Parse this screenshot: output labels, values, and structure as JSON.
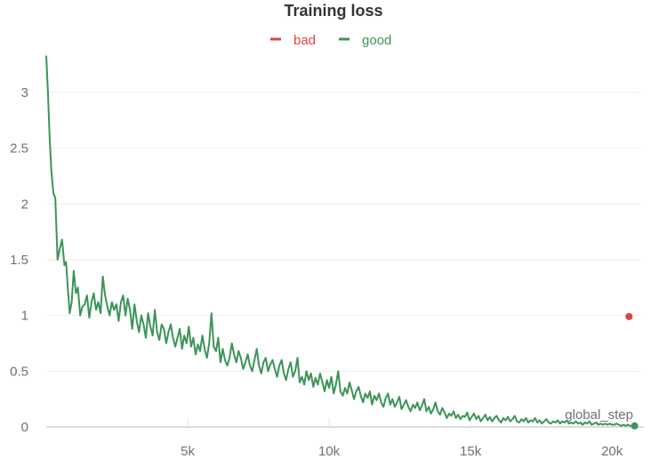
{
  "chart_data": {
    "type": "line",
    "title": "Training loss",
    "xlabel": "global_step",
    "ylabel": "",
    "xlim": [
      0,
      21000
    ],
    "ylim": [
      0,
      3.35
    ],
    "x_ticks": [
      {
        "value": 5000,
        "label": "5k"
      },
      {
        "value": 10000,
        "label": "10k"
      },
      {
        "value": 15000,
        "label": "15k"
      },
      {
        "value": 20000,
        "label": "20k"
      }
    ],
    "y_ticks": [
      {
        "value": 0,
        "label": "0"
      },
      {
        "value": 0.5,
        "label": "0.5"
      },
      {
        "value": 1,
        "label": "1"
      },
      {
        "value": 1.5,
        "label": "1.5"
      },
      {
        "value": 2,
        "label": "2"
      },
      {
        "value": 2.5,
        "label": "2.5"
      },
      {
        "value": 3,
        "label": "3"
      }
    ],
    "legend_position": "top-center",
    "grid": true,
    "series": [
      {
        "name": "bad",
        "color": "#dd4444",
        "points": [
          [
            20600,
            0.99
          ]
        ]
      },
      {
        "name": "good",
        "color": "#3d9458",
        "points": [
          [
            0,
            3.33
          ],
          [
            60,
            3.0
          ],
          [
            120,
            2.6
          ],
          [
            180,
            2.3
          ],
          [
            250,
            2.1
          ],
          [
            320,
            2.05
          ],
          [
            400,
            1.5
          ],
          [
            480,
            1.6
          ],
          [
            560,
            1.68
          ],
          [
            640,
            1.45
          ],
          [
            700,
            1.48
          ],
          [
            760,
            1.25
          ],
          [
            830,
            1.02
          ],
          [
            900,
            1.12
          ],
          [
            970,
            1.4
          ],
          [
            1050,
            1.2
          ],
          [
            1120,
            1.25
          ],
          [
            1200,
            1.0
          ],
          [
            1280,
            1.08
          ],
          [
            1360,
            1.1
          ],
          [
            1440,
            1.18
          ],
          [
            1520,
            0.98
          ],
          [
            1600,
            1.12
          ],
          [
            1680,
            1.2
          ],
          [
            1760,
            1.05
          ],
          [
            1840,
            1.12
          ],
          [
            1920,
            1.02
          ],
          [
            2000,
            1.35
          ],
          [
            2080,
            1.18
          ],
          [
            2160,
            1.08
          ],
          [
            2240,
            1.0
          ],
          [
            2320,
            1.12
          ],
          [
            2400,
            1.05
          ],
          [
            2480,
            1.1
          ],
          [
            2560,
            0.95
          ],
          [
            2640,
            1.12
          ],
          [
            2720,
            1.18
          ],
          [
            2800,
            1.0
          ],
          [
            2880,
            1.15
          ],
          [
            2960,
            1.05
          ],
          [
            3040,
            0.88
          ],
          [
            3120,
            1.1
          ],
          [
            3200,
            0.95
          ],
          [
            3280,
            0.85
          ],
          [
            3360,
            1.0
          ],
          [
            3440,
            0.92
          ],
          [
            3520,
            0.8
          ],
          [
            3600,
            1.02
          ],
          [
            3680,
            0.9
          ],
          [
            3760,
            0.82
          ],
          [
            3840,
            1.05
          ],
          [
            3920,
            0.85
          ],
          [
            4000,
            0.78
          ],
          [
            4080,
            0.92
          ],
          [
            4160,
            0.88
          ],
          [
            4240,
            0.75
          ],
          [
            4320,
            0.85
          ],
          [
            4400,
            0.92
          ],
          [
            4480,
            0.8
          ],
          [
            4560,
            0.72
          ],
          [
            4640,
            0.8
          ],
          [
            4720,
            0.88
          ],
          [
            4800,
            0.7
          ],
          [
            4880,
            0.82
          ],
          [
            4960,
            0.75
          ],
          [
            5040,
            0.9
          ],
          [
            5120,
            0.72
          ],
          [
            5200,
            0.8
          ],
          [
            5280,
            0.65
          ],
          [
            5360,
            0.74
          ],
          [
            5440,
            0.68
          ],
          [
            5520,
            0.82
          ],
          [
            5600,
            0.7
          ],
          [
            5680,
            0.62
          ],
          [
            5760,
            0.75
          ],
          [
            5840,
            1.02
          ],
          [
            5920,
            0.72
          ],
          [
            6000,
            0.68
          ],
          [
            6080,
            0.8
          ],
          [
            6160,
            0.58
          ],
          [
            6240,
            0.7
          ],
          [
            6320,
            0.6
          ],
          [
            6400,
            0.55
          ],
          [
            6480,
            0.62
          ],
          [
            6560,
            0.75
          ],
          [
            6640,
            0.65
          ],
          [
            6720,
            0.58
          ],
          [
            6800,
            0.68
          ],
          [
            6880,
            0.62
          ],
          [
            6960,
            0.52
          ],
          [
            7040,
            0.58
          ],
          [
            7120,
            0.65
          ],
          [
            7200,
            0.55
          ],
          [
            7280,
            0.5
          ],
          [
            7360,
            0.6
          ],
          [
            7440,
            0.7
          ],
          [
            7520,
            0.55
          ],
          [
            7600,
            0.48
          ],
          [
            7680,
            0.58
          ],
          [
            7760,
            0.62
          ],
          [
            7840,
            0.5
          ],
          [
            7920,
            0.56
          ],
          [
            8000,
            0.6
          ],
          [
            8080,
            0.52
          ],
          [
            8160,
            0.45
          ],
          [
            8240,
            0.55
          ],
          [
            8320,
            0.6
          ],
          [
            8400,
            0.48
          ],
          [
            8480,
            0.42
          ],
          [
            8560,
            0.52
          ],
          [
            8640,
            0.58
          ],
          [
            8720,
            0.45
          ],
          [
            8800,
            0.5
          ],
          [
            8880,
            0.62
          ],
          [
            8960,
            0.4
          ],
          [
            9040,
            0.45
          ],
          [
            9120,
            0.38
          ],
          [
            9200,
            0.5
          ],
          [
            9280,
            0.42
          ],
          [
            9360,
            0.48
          ],
          [
            9440,
            0.36
          ],
          [
            9520,
            0.44
          ],
          [
            9600,
            0.38
          ],
          [
            9680,
            0.48
          ],
          [
            9760,
            0.4
          ],
          [
            9840,
            0.32
          ],
          [
            9920,
            0.42
          ],
          [
            10000,
            0.35
          ],
          [
            10080,
            0.45
          ],
          [
            10160,
            0.3
          ],
          [
            10240,
            0.38
          ],
          [
            10320,
            0.5
          ],
          [
            10400,
            0.32
          ],
          [
            10480,
            0.28
          ],
          [
            10560,
            0.35
          ],
          [
            10640,
            0.3
          ],
          [
            10720,
            0.4
          ],
          [
            10800,
            0.33
          ],
          [
            10880,
            0.25
          ],
          [
            10960,
            0.32
          ],
          [
            11040,
            0.36
          ],
          [
            11120,
            0.28
          ],
          [
            11200,
            0.22
          ],
          [
            11280,
            0.3
          ],
          [
            11360,
            0.26
          ],
          [
            11440,
            0.32
          ],
          [
            11520,
            0.2
          ],
          [
            11600,
            0.28
          ],
          [
            11680,
            0.24
          ],
          [
            11760,
            0.3
          ],
          [
            11840,
            0.22
          ],
          [
            11920,
            0.18
          ],
          [
            12000,
            0.26
          ],
          [
            12080,
            0.3
          ],
          [
            12160,
            0.2
          ],
          [
            12240,
            0.25
          ],
          [
            12320,
            0.18
          ],
          [
            12400,
            0.22
          ],
          [
            12480,
            0.27
          ],
          [
            12560,
            0.16
          ],
          [
            12640,
            0.2
          ],
          [
            12720,
            0.24
          ],
          [
            12800,
            0.18
          ],
          [
            12880,
            0.14
          ],
          [
            12960,
            0.2
          ],
          [
            13040,
            0.17
          ],
          [
            13120,
            0.22
          ],
          [
            13200,
            0.15
          ],
          [
            13280,
            0.19
          ],
          [
            13360,
            0.25
          ],
          [
            13440,
            0.14
          ],
          [
            13520,
            0.18
          ],
          [
            13600,
            0.12
          ],
          [
            13680,
            0.16
          ],
          [
            13760,
            0.22
          ],
          [
            13840,
            0.14
          ],
          [
            13920,
            0.11
          ],
          [
            14000,
            0.17
          ],
          [
            14080,
            0.13
          ],
          [
            14160,
            0.08
          ],
          [
            14240,
            0.12
          ],
          [
            14320,
            0.1
          ],
          [
            14400,
            0.14
          ],
          [
            14480,
            0.08
          ],
          [
            14560,
            0.11
          ],
          [
            14640,
            0.07
          ],
          [
            14720,
            0.1
          ],
          [
            14800,
            0.09
          ],
          [
            14880,
            0.13
          ],
          [
            14960,
            0.06
          ],
          [
            15040,
            0.09
          ],
          [
            15120,
            0.12
          ],
          [
            15200,
            0.07
          ],
          [
            15280,
            0.1
          ],
          [
            15360,
            0.05
          ],
          [
            15440,
            0.08
          ],
          [
            15520,
            0.11
          ],
          [
            15600,
            0.06
          ],
          [
            15680,
            0.09
          ],
          [
            15760,
            0.05
          ],
          [
            15840,
            0.08
          ],
          [
            15920,
            0.1
          ],
          [
            16000,
            0.06
          ],
          [
            16080,
            0.04
          ],
          [
            16160,
            0.08
          ],
          [
            16240,
            0.06
          ],
          [
            16320,
            0.09
          ],
          [
            16400,
            0.05
          ],
          [
            16480,
            0.07
          ],
          [
            16560,
            0.1
          ],
          [
            16640,
            0.05
          ],
          [
            16720,
            0.04
          ],
          [
            16800,
            0.07
          ],
          [
            16880,
            0.05
          ],
          [
            16960,
            0.08
          ],
          [
            17040,
            0.04
          ],
          [
            17120,
            0.06
          ],
          [
            17200,
            0.05
          ],
          [
            17280,
            0.08
          ],
          [
            17360,
            0.04
          ],
          [
            17440,
            0.06
          ],
          [
            17520,
            0.03
          ],
          [
            17600,
            0.05
          ],
          [
            17680,
            0.07
          ],
          [
            17760,
            0.04
          ],
          [
            17840,
            0.03
          ],
          [
            17920,
            0.05
          ],
          [
            18000,
            0.04
          ],
          [
            18080,
            0.06
          ],
          [
            18160,
            0.03
          ],
          [
            18240,
            0.05
          ],
          [
            18320,
            0.04
          ],
          [
            18400,
            0.06
          ],
          [
            18480,
            0.03
          ],
          [
            18560,
            0.04
          ],
          [
            18640,
            0.03
          ],
          [
            18720,
            0.05
          ],
          [
            18800,
            0.03
          ],
          [
            18880,
            0.04
          ],
          [
            18960,
            0.02
          ],
          [
            19040,
            0.04
          ],
          [
            19120,
            0.03
          ],
          [
            19200,
            0.05
          ],
          [
            19280,
            0.02
          ],
          [
            19360,
            0.03
          ],
          [
            19440,
            0.04
          ],
          [
            19520,
            0.02
          ],
          [
            19600,
            0.03
          ],
          [
            19680,
            0.02
          ],
          [
            19760,
            0.03
          ],
          [
            19840,
            0.02
          ],
          [
            19920,
            0.03
          ],
          [
            20000,
            0.02
          ],
          [
            20080,
            0.02
          ],
          [
            20160,
            0.03
          ],
          [
            20240,
            0.02
          ],
          [
            20320,
            0.01
          ],
          [
            20400,
            0.02
          ],
          [
            20480,
            0.01
          ],
          [
            20560,
            0.02
          ],
          [
            20640,
            0.01
          ],
          [
            20720,
            0.01
          ],
          [
            20800,
            0.01
          ]
        ]
      }
    ]
  }
}
